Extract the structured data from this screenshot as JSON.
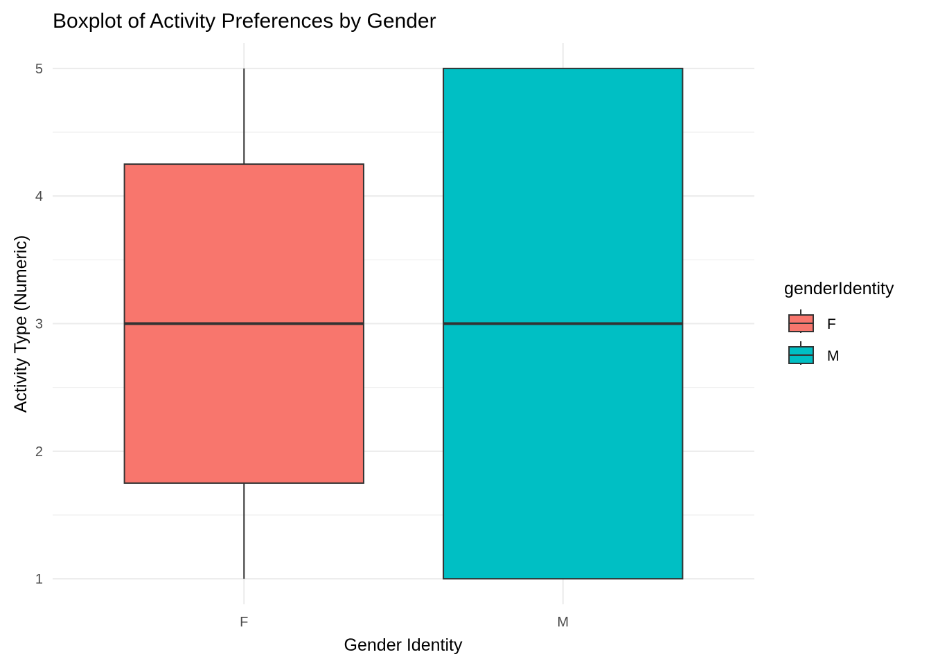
{
  "chart_data": {
    "type": "boxplot",
    "title": "Boxplot of Activity Preferences by Gender",
    "xlabel": "Gender Identity",
    "ylabel": "Activity Type (Numeric)",
    "categories": [
      "F",
      "M"
    ],
    "ylim": [
      0.8,
      5.2
    ],
    "y_ticks": [
      1,
      2,
      3,
      4,
      5
    ],
    "grid": true,
    "boxes": [
      {
        "category": "F",
        "min": 1,
        "q1": 1.75,
        "median": 3,
        "q3": 4.25,
        "max": 5,
        "color": "#F8766D"
      },
      {
        "category": "M",
        "min": 1,
        "q1": 1,
        "median": 3,
        "q3": 5,
        "max": 5,
        "color": "#00BFC4"
      }
    ],
    "legend": {
      "title": "genderIdentity",
      "position": "right",
      "entries": [
        {
          "label": "F",
          "color": "#F8766D"
        },
        {
          "label": "M",
          "color": "#00BFC4"
        }
      ]
    }
  }
}
